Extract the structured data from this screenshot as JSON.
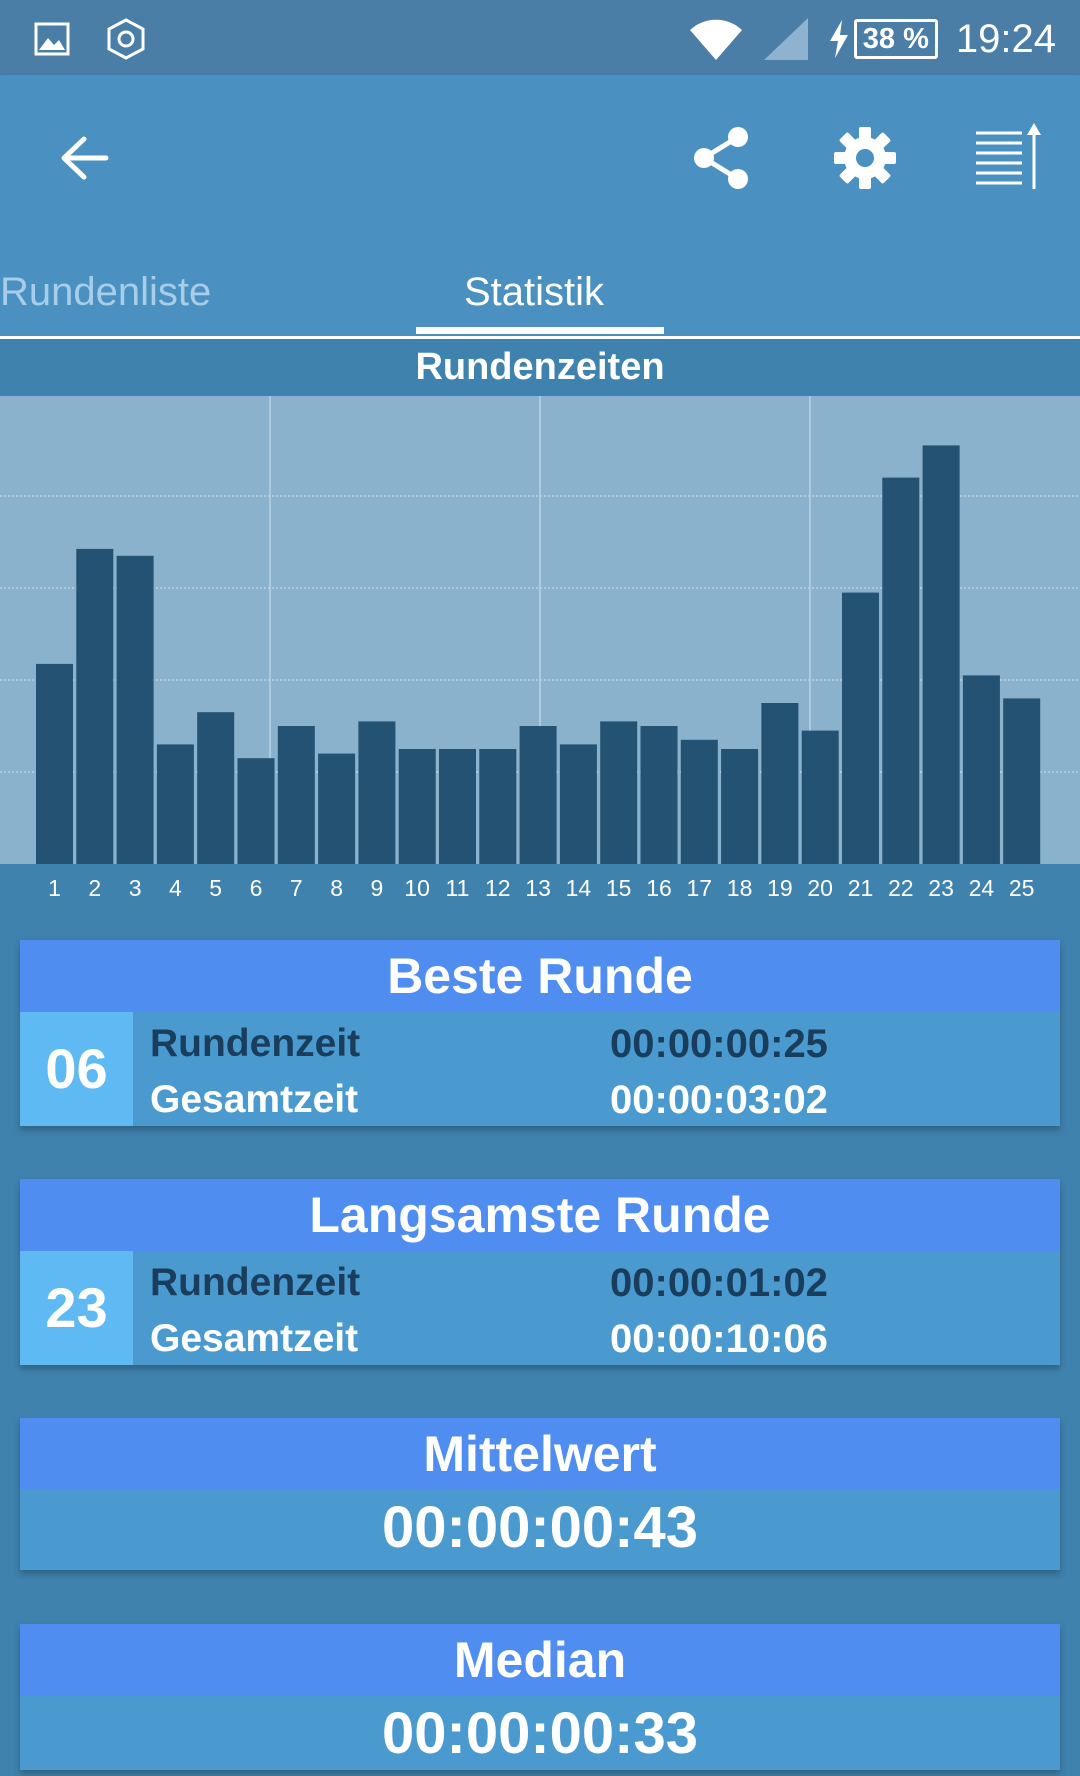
{
  "status_bar": {
    "icons": [
      "gallery-icon",
      "hexagon-icon",
      "wifi-icon",
      "signal-icon",
      "charging-icon"
    ],
    "battery": "38 %",
    "time": "19:24"
  },
  "app_bar": {
    "icons": [
      "back-arrow-icon",
      "share-icon",
      "gear-icon",
      "sort-list-icon"
    ]
  },
  "tabs": [
    {
      "label": "Rundenliste",
      "active": false
    },
    {
      "label": "Statistik",
      "active": true
    }
  ],
  "chart_data": {
    "type": "bar",
    "title": "Rundenzeiten",
    "categories": [
      "1",
      "2",
      "3",
      "4",
      "5",
      "6",
      "7",
      "8",
      "9",
      "10",
      "11",
      "12",
      "13",
      "14",
      "15",
      "16",
      "17",
      "18",
      "19",
      "20",
      "21",
      "22",
      "23",
      "24",
      "25"
    ],
    "values": [
      43.5,
      68.5,
      67,
      26,
      33,
      23,
      30,
      24,
      31,
      25,
      25,
      25,
      30,
      26,
      31,
      30,
      27,
      25,
      35,
      29,
      59,
      84,
      91,
      41,
      36
    ],
    "ylim": [
      0,
      100
    ],
    "grid": true,
    "colors": {
      "bar": "#235272",
      "background": "#8bb2cc",
      "grid": "#b9d2e2"
    }
  },
  "cards": {
    "best": {
      "title": "Beste Runde",
      "lap": "06",
      "rows": [
        {
          "label": "Rundenzeit",
          "value": "00:00:00:25"
        },
        {
          "label": "Gesamtzeit",
          "value": "00:00:03:02"
        }
      ]
    },
    "slowest": {
      "title": "Langsamste Runde",
      "lap": "23",
      "rows": [
        {
          "label": "Rundenzeit",
          "value": "00:00:01:02"
        },
        {
          "label": "Gesamtzeit",
          "value": "00:00:10:06"
        }
      ]
    },
    "mean": {
      "title": "Mittelwert",
      "value": "00:00:00:43"
    },
    "median": {
      "title": "Median",
      "value": "00:00:00:33"
    }
  }
}
